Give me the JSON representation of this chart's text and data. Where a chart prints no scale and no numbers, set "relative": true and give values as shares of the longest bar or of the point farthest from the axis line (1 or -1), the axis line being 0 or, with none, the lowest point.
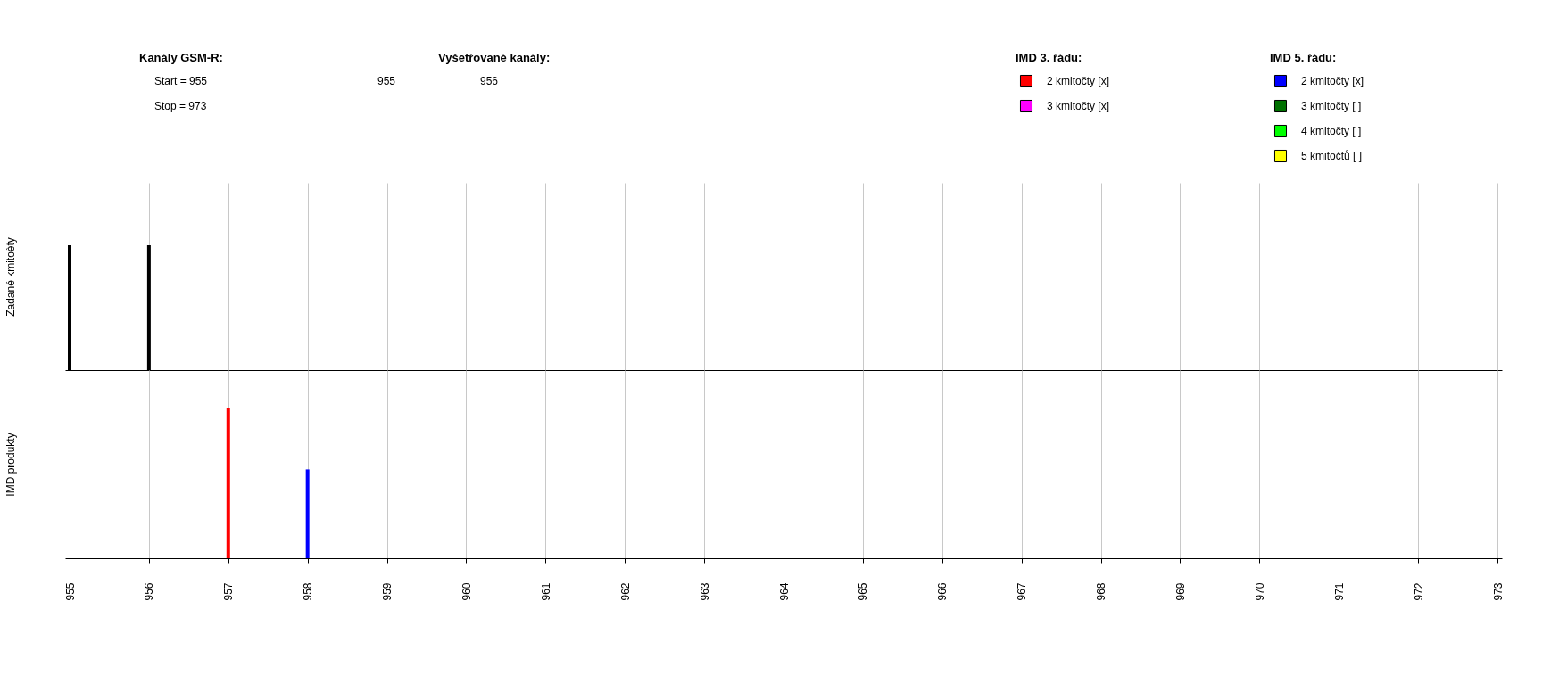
{
  "chart_data": [
    {
      "type": "other",
      "annotations": [
        "Kanály GSM-R:",
        "Start = 955",
        "Stop = 973",
        "Vyšetřované kanály:",
        "955",
        "956"
      ]
    },
    {
      "type": "bar",
      "ylabel": "Zadané kmitoèty",
      "relative": true,
      "xlim": [
        955,
        973
      ],
      "xticks": [
        955,
        956,
        957,
        958,
        959,
        960,
        961,
        962,
        963,
        964,
        965,
        966,
        967,
        968,
        969,
        970,
        971,
        972,
        973
      ],
      "grid": "x",
      "tick_labels": false,
      "series": [
        {
          "color": "#000000",
          "x": [
            955,
            956
          ],
          "values": [
            1,
            1
          ]
        }
      ]
    },
    {
      "type": "bar",
      "ylabel": "IMD produkty",
      "relative": true,
      "xlim": [
        955,
        973
      ],
      "xticks": [
        955,
        956,
        957,
        958,
        959,
        960,
        961,
        962,
        963,
        964,
        965,
        966,
        967,
        968,
        969,
        970,
        971,
        972,
        973
      ],
      "grid": "x",
      "tick_labels": "x",
      "legend": "top",
      "annotations": [
        "IMD 3. řádu:",
        "IMD 5. řádu:"
      ],
      "series": [
        {
          "name": "2 kmitočty  [x]",
          "color": "#ff0000",
          "x": [
            957
          ],
          "values": [
            1
          ]
        },
        {
          "name": "3 kmitočty  [x]",
          "color": "#ff00ff"
        },
        {
          "name": "2 kmitočty  [x]",
          "color": "#0000ff",
          "x": [
            958
          ],
          "values": [
            0.59
          ]
        },
        {
          "name": "3 kmitočty  [ ]",
          "color": "#007000"
        },
        {
          "name": "4 kmitočty  [ ]",
          "color": "#00ff00"
        },
        {
          "name": "5 kmitočtů  [ ]",
          "color": "#ffff00"
        }
      ]
    }
  ]
}
